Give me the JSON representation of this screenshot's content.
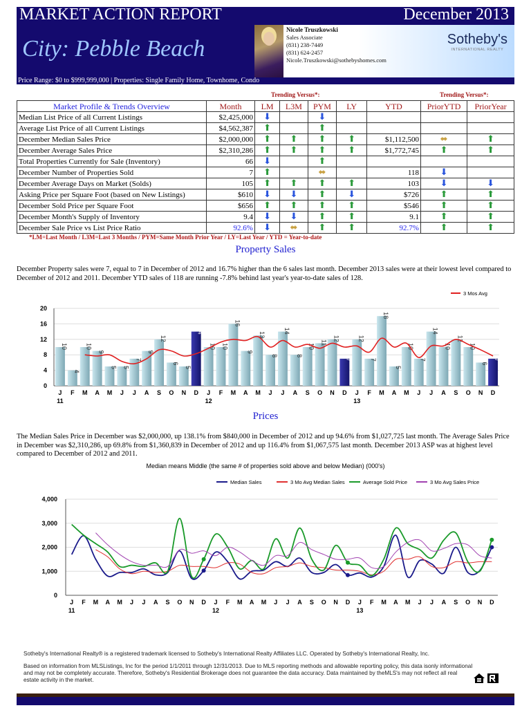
{
  "header": {
    "title": "MARKET ACTION REPORT",
    "date": "December 2013",
    "city": "City: Pebble Beach",
    "range": "Price Range: $0 to $999,999,000 | Properties: Single Family Home, Townhome, Condo",
    "agent": {
      "name": "Nicole Truszkowski",
      "role": "Sales Associate",
      "phone1": "(831) 238-7449",
      "phone2": "(831) 624-2457",
      "email": "Nicole.Truszkowski@sothebyshomes.com"
    },
    "logo": {
      "name": "Sotheby's",
      "sub": "INTERNATIONAL REALTY"
    },
    "navy": "#140a6e"
  },
  "table": {
    "trend_label": "Trending Versus*:",
    "headers": [
      "Market Profile & Trends Overview",
      "Month",
      "LM",
      "L3M",
      "PYM",
      "LY",
      "YTD",
      "PriorYTD",
      "PriorYear"
    ],
    "rows": [
      {
        "label": "Median List Price of all Current Listings",
        "month": "$2,425,000",
        "lm": "down",
        "l3m": "",
        "pym": "down",
        "ly": "",
        "ytd": "",
        "prior_ytd": "",
        "prior_year": ""
      },
      {
        "label": "Average List Price of all Current Listings",
        "month": "$4,562,387",
        "lm": "up",
        "l3m": "",
        "pym": "up",
        "ly": "",
        "ytd": "",
        "prior_ytd": "",
        "prior_year": ""
      },
      {
        "label": "December Median Sales Price",
        "month": "$2,000,000",
        "lm": "up",
        "l3m": "up",
        "pym": "up",
        "ly": "up",
        "ytd": "$1,112,500",
        "prior_ytd": "flat",
        "prior_year": "up"
      },
      {
        "label": "December Average Sales Price",
        "month": "$2,310,286",
        "lm": "up",
        "l3m": "up",
        "pym": "up",
        "ly": "up",
        "ytd": "$1,772,745",
        "prior_ytd": "up",
        "prior_year": "up"
      },
      {
        "label": "Total Properties Currently for Sale (Inventory)",
        "month": "66",
        "lm": "down",
        "l3m": "",
        "pym": "up",
        "ly": "",
        "ytd": "",
        "prior_ytd": "",
        "prior_year": ""
      },
      {
        "label": "December Number of Properties Sold",
        "month": "7",
        "lm": "up",
        "l3m": "",
        "pym": "flat",
        "ly": "",
        "ytd": "118",
        "prior_ytd": "down",
        "prior_year": ""
      },
      {
        "label": "December Average Days on Market (Solds)",
        "month": "105",
        "lm": "up",
        "l3m": "up",
        "pym": "up",
        "ly": "up",
        "ytd": "103",
        "prior_ytd": "down",
        "prior_year": "down"
      },
      {
        "label": "Asking Price per Square Foot (based on New Listings)",
        "month": "$610",
        "lm": "down",
        "l3m": "down",
        "pym": "up",
        "ly": "down",
        "ytd": "$726",
        "prior_ytd": "up",
        "prior_year": "up"
      },
      {
        "label": "December Sold Price per Square Foot",
        "month": "$656",
        "lm": "up",
        "l3m": "up",
        "pym": "up",
        "ly": "up",
        "ytd": "$546",
        "prior_ytd": "up",
        "prior_year": "up"
      },
      {
        "label": "December Month's Supply of Inventory",
        "month": "9.4",
        "lm": "down",
        "l3m": "down",
        "pym": "up",
        "ly": "up",
        "ytd": "9.1",
        "prior_ytd": "up",
        "prior_year": "up"
      },
      {
        "label": "December Sale Price vs List Price Ratio",
        "month": "92.6%",
        "lm": "down",
        "l3m": "flat",
        "pym": "up",
        "ly": "up",
        "ytd": "92.7%",
        "prior_ytd": "up",
        "prior_year": "up"
      }
    ],
    "footnote": "*LM=Last Month / L3M=Last 3 Months / PYM=Same Month Prior Year / LY=Last Year / YTD = Year-to-date",
    "arrow_colors": {
      "up": "#2a9a3a",
      "down": "#2a55dd",
      "flat": "#c8a040"
    }
  },
  "sales": {
    "heading": "Property Sales",
    "text": "December Property sales were 7, equal to 7 in December of 2012 and 16.7% higher than the  6 sales last month.  December 2013 sales were at their lowest level compared to December of 2012 and 2011.  December YTD sales of 118 are running -7.8% behind last year's year-to-date sales of 128."
  },
  "prices": {
    "heading": "Prices",
    "text": "The Median Sales Price in December was $2,000,000, up 138.1% from $840,000 in December of 2012 and up 94.6% from $1,027,725 last month.  The Average Sales Price in December was $2,310,286, up 69.8% from $1,360,839 in December of 2012 and up 116.4% from $1,067,575 last month.  December 2013 ASP was at highest level compared to December of 2012 and 2011."
  },
  "chart_data": [
    {
      "type": "bar",
      "months": [
        "J",
        "F",
        "M",
        "A",
        "M",
        "J",
        "J",
        "A",
        "S",
        "O",
        "N",
        "D",
        "J",
        "F",
        "M",
        "A",
        "M",
        "J",
        "J",
        "A",
        "S",
        "O",
        "N",
        "D",
        "J",
        "F",
        "M",
        "A",
        "M",
        "J",
        "J",
        "A",
        "S",
        "O",
        "N",
        "D"
      ],
      "years": [
        "11",
        "12",
        "13"
      ],
      "ylim": [
        0,
        20
      ],
      "yticks": [
        0,
        4,
        8,
        12,
        16,
        20
      ],
      "values": [
        10,
        4,
        10,
        9,
        5,
        5,
        7,
        9,
        12,
        6,
        5,
        14,
        10,
        10,
        16,
        9,
        13,
        8,
        14,
        8,
        10,
        11,
        12,
        7,
        12,
        7,
        18,
        5,
        10,
        7,
        14,
        10,
        12,
        10,
        6,
        7
      ],
      "highlight_months": [
        "D"
      ],
      "series": [
        {
          "name": "3 Mos Avg",
          "color": "#e02020",
          "start_index": 2,
          "values": [
            8,
            7.7,
            8,
            6.3,
            5.7,
            7,
            9.3,
            9,
            7.7,
            8.3,
            9.7,
            11.3,
            12,
            11.7,
            12.7,
            10,
            11.7,
            10,
            10.7,
            9.7,
            11,
            10,
            10.3,
            8.7,
            12.3,
            10,
            11,
            7.3,
            10.3,
            10.3,
            12,
            10.7,
            9.3,
            7.7
          ]
        }
      ],
      "legend": "top-right",
      "grid": true
    },
    {
      "type": "line",
      "title": "Median means Middle (the same # of properties sold above and below Median) (000's)",
      "ylim": [
        0,
        4000
      ],
      "yticks": [
        "0",
        "1,000",
        "2,000",
        "3,000",
        "4,000"
      ],
      "legend": "top-right",
      "grid": true,
      "series": [
        {
          "name": "Median Sales",
          "color": "#1a1a8a",
          "start_index": 0,
          "values": [
            1700,
            2480,
            1500,
            800,
            950,
            950,
            1100,
            850,
            950,
            1850,
            700,
            1030,
            1800,
            1400,
            680,
            1000,
            1050,
            1400,
            1200,
            1550,
            950,
            950,
            1280,
            840,
            930,
            760,
            1200,
            2500,
            760,
            1450,
            1300,
            920,
            2000,
            950,
            1030,
            2000
          ]
        },
        {
          "name": "3 Mo Avg Median Sales",
          "color": "#e03030",
          "start_index": 2,
          "values": [
            1900,
            1600,
            1100,
            900,
            1000,
            950,
            1000,
            1250,
            1200,
            1200,
            1150,
            1350,
            1300,
            950,
            900,
            1150,
            1200,
            1350,
            1200,
            1150,
            1050,
            1050,
            1000,
            850,
            1000,
            1500,
            1500,
            1600,
            1200,
            1150,
            1400,
            1350,
            1400,
            1400
          ]
        },
        {
          "name": "Average Sold Price",
          "color": "#1a9a2a",
          "start_index": 0,
          "values": [
            2950,
            2500,
            2150,
            1800,
            1200,
            1250,
            1200,
            1350,
            1000,
            3200,
            780,
            1500,
            2550,
            2000,
            1100,
            1450,
            1100,
            2350,
            1550,
            2800,
            1500,
            1050,
            2080,
            1360,
            1250,
            820,
            1500,
            2800,
            2150,
            1900,
            1550,
            2300,
            2600,
            1400,
            1000,
            2310
          ]
        },
        {
          "name": "3 Mo Avg Sales Price",
          "color": "#a040b0",
          "start_index": 2,
          "values": [
            2600,
            2100,
            1700,
            1400,
            1250,
            1250,
            1200,
            1900,
            1750,
            1850,
            1650,
            2000,
            1800,
            1450,
            1250,
            1650,
            1650,
            2200,
            1900,
            1700,
            1500,
            1500,
            1550,
            1150,
            1200,
            1800,
            2200,
            2300,
            1850,
            1950,
            2150,
            2100,
            1650,
            1550
          ]
        }
      ]
    }
  ],
  "footer": {
    "trademark": "Sotheby's International Realty® is a registered trademark licensed to Sotheby's International Realty Affiliates LLC. Operated by Sotheby's International Realty, Inc.",
    "disclaimer": "Based on information from MLSListings, Inc for the period 1/1/2011 through 12/31/2013.  Due to MLS reporting methods and allowable reporting policy, this data isonly informational and may not be completely accurate.  Therefore, Sotheby's Residential Brokerage does not guarantee the data accuracy.   Data maintained by theMLS's may not reflect all real estate activity in the market."
  }
}
